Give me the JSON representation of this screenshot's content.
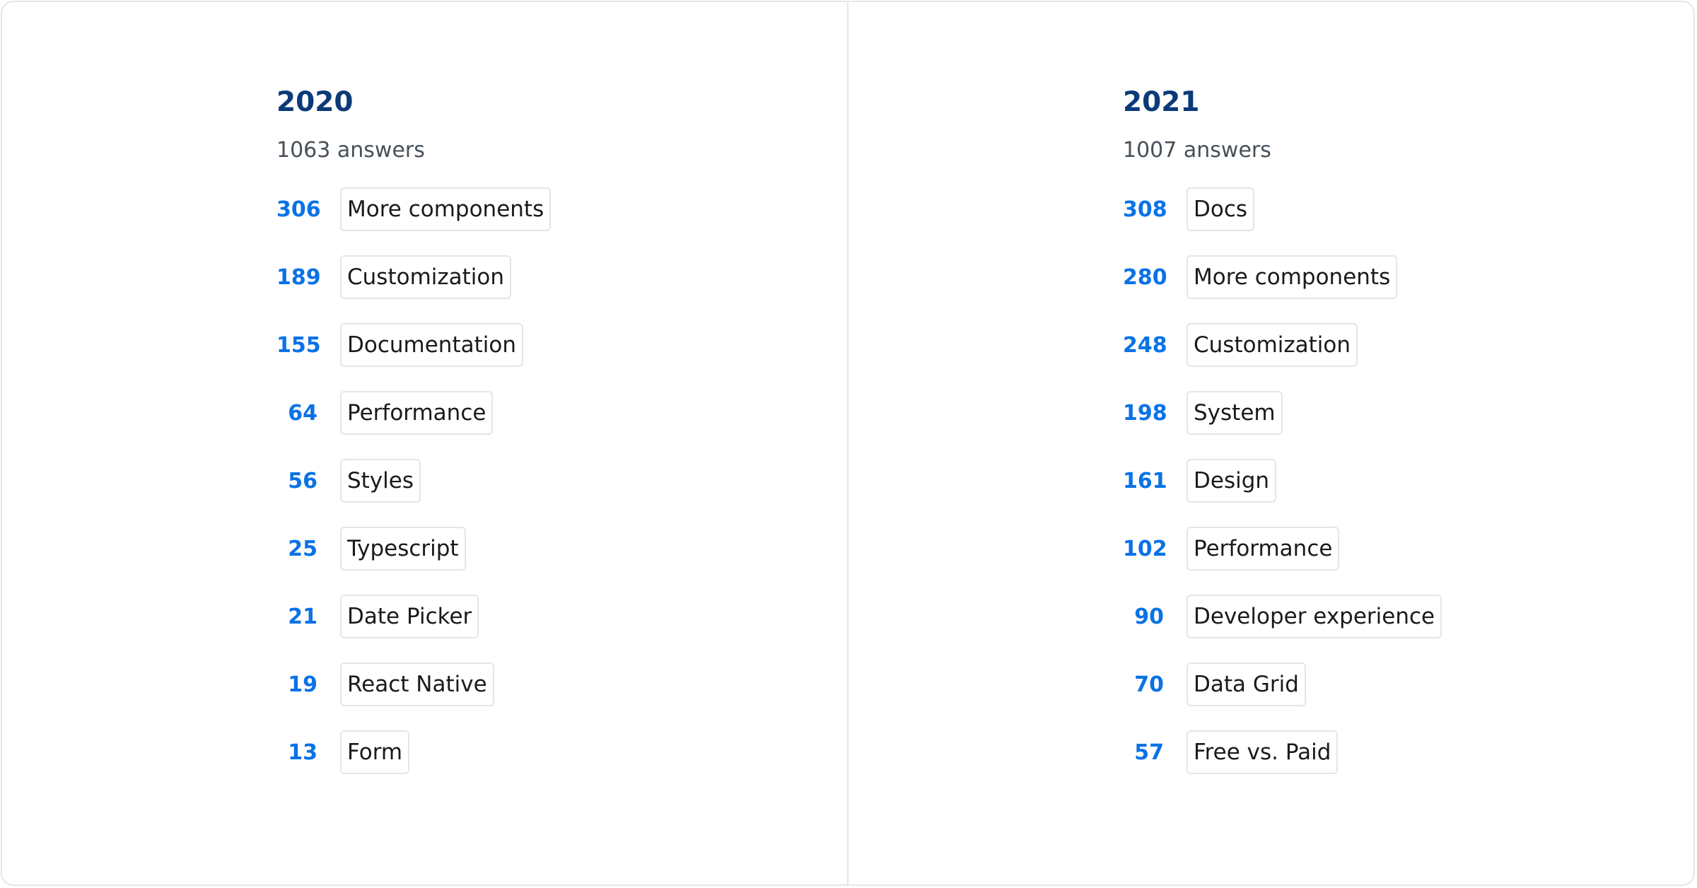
{
  "columns": [
    {
      "year": "2020",
      "answers": "1063 answers",
      "items": [
        {
          "count": "306",
          "label": "More components"
        },
        {
          "count": "189",
          "label": "Customization"
        },
        {
          "count": "155",
          "label": "Documentation"
        },
        {
          "count": "64",
          "label": "Performance"
        },
        {
          "count": "56",
          "label": "Styles"
        },
        {
          "count": "25",
          "label": "Typescript"
        },
        {
          "count": "21",
          "label": "Date Picker"
        },
        {
          "count": "19",
          "label": "React Native"
        },
        {
          "count": "13",
          "label": "Form"
        }
      ]
    },
    {
      "year": "2021",
      "answers": "1007 answers",
      "items": [
        {
          "count": "308",
          "label": "Docs"
        },
        {
          "count": "280",
          "label": "More components"
        },
        {
          "count": "248",
          "label": "Customization"
        },
        {
          "count": "198",
          "label": "System"
        },
        {
          "count": "161",
          "label": "Design"
        },
        {
          "count": "102",
          "label": "Performance"
        },
        {
          "count": "90",
          "label": "Developer experience"
        },
        {
          "count": "70",
          "label": "Data Grid"
        },
        {
          "count": "57",
          "label": "Free vs. Paid"
        }
      ]
    }
  ],
  "colors": {
    "year": "#0b3a78",
    "count": "#0a72e6",
    "border": "#e3e6ea"
  }
}
